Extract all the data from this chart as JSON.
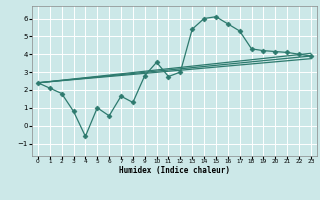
{
  "xlabel": "Humidex (Indice chaleur)",
  "bg_color": "#cce8e8",
  "grid_color": "#ffffff",
  "line_color": "#2d7a6e",
  "xlim": [
    -0.5,
    23.5
  ],
  "ylim": [
    -1.7,
    6.7
  ],
  "xticks": [
    0,
    1,
    2,
    3,
    4,
    5,
    6,
    7,
    8,
    9,
    10,
    11,
    12,
    13,
    14,
    15,
    16,
    17,
    18,
    19,
    20,
    21,
    22,
    23
  ],
  "yticks": [
    -1,
    0,
    1,
    2,
    3,
    4,
    5,
    6
  ],
  "line1_x": [
    0,
    1,
    2,
    3,
    4,
    5,
    6,
    7,
    8,
    9,
    10,
    11,
    12,
    13,
    14,
    15,
    16,
    17,
    18,
    19,
    20,
    21,
    22,
    23
  ],
  "line1_y": [
    2.4,
    2.1,
    1.8,
    0.8,
    -0.6,
    1.0,
    0.55,
    1.65,
    1.3,
    2.8,
    3.55,
    2.75,
    3.0,
    5.4,
    6.0,
    6.1,
    5.7,
    5.3,
    4.3,
    4.2,
    4.15,
    4.1,
    4.0,
    3.9
  ],
  "line2_x": [
    0,
    23
  ],
  "line2_y": [
    2.4,
    3.9
  ],
  "line3_x": [
    0,
    23
  ],
  "line3_y": [
    2.4,
    3.75
  ],
  "line4_x": [
    0,
    23
  ],
  "line4_y": [
    2.4,
    4.05
  ]
}
